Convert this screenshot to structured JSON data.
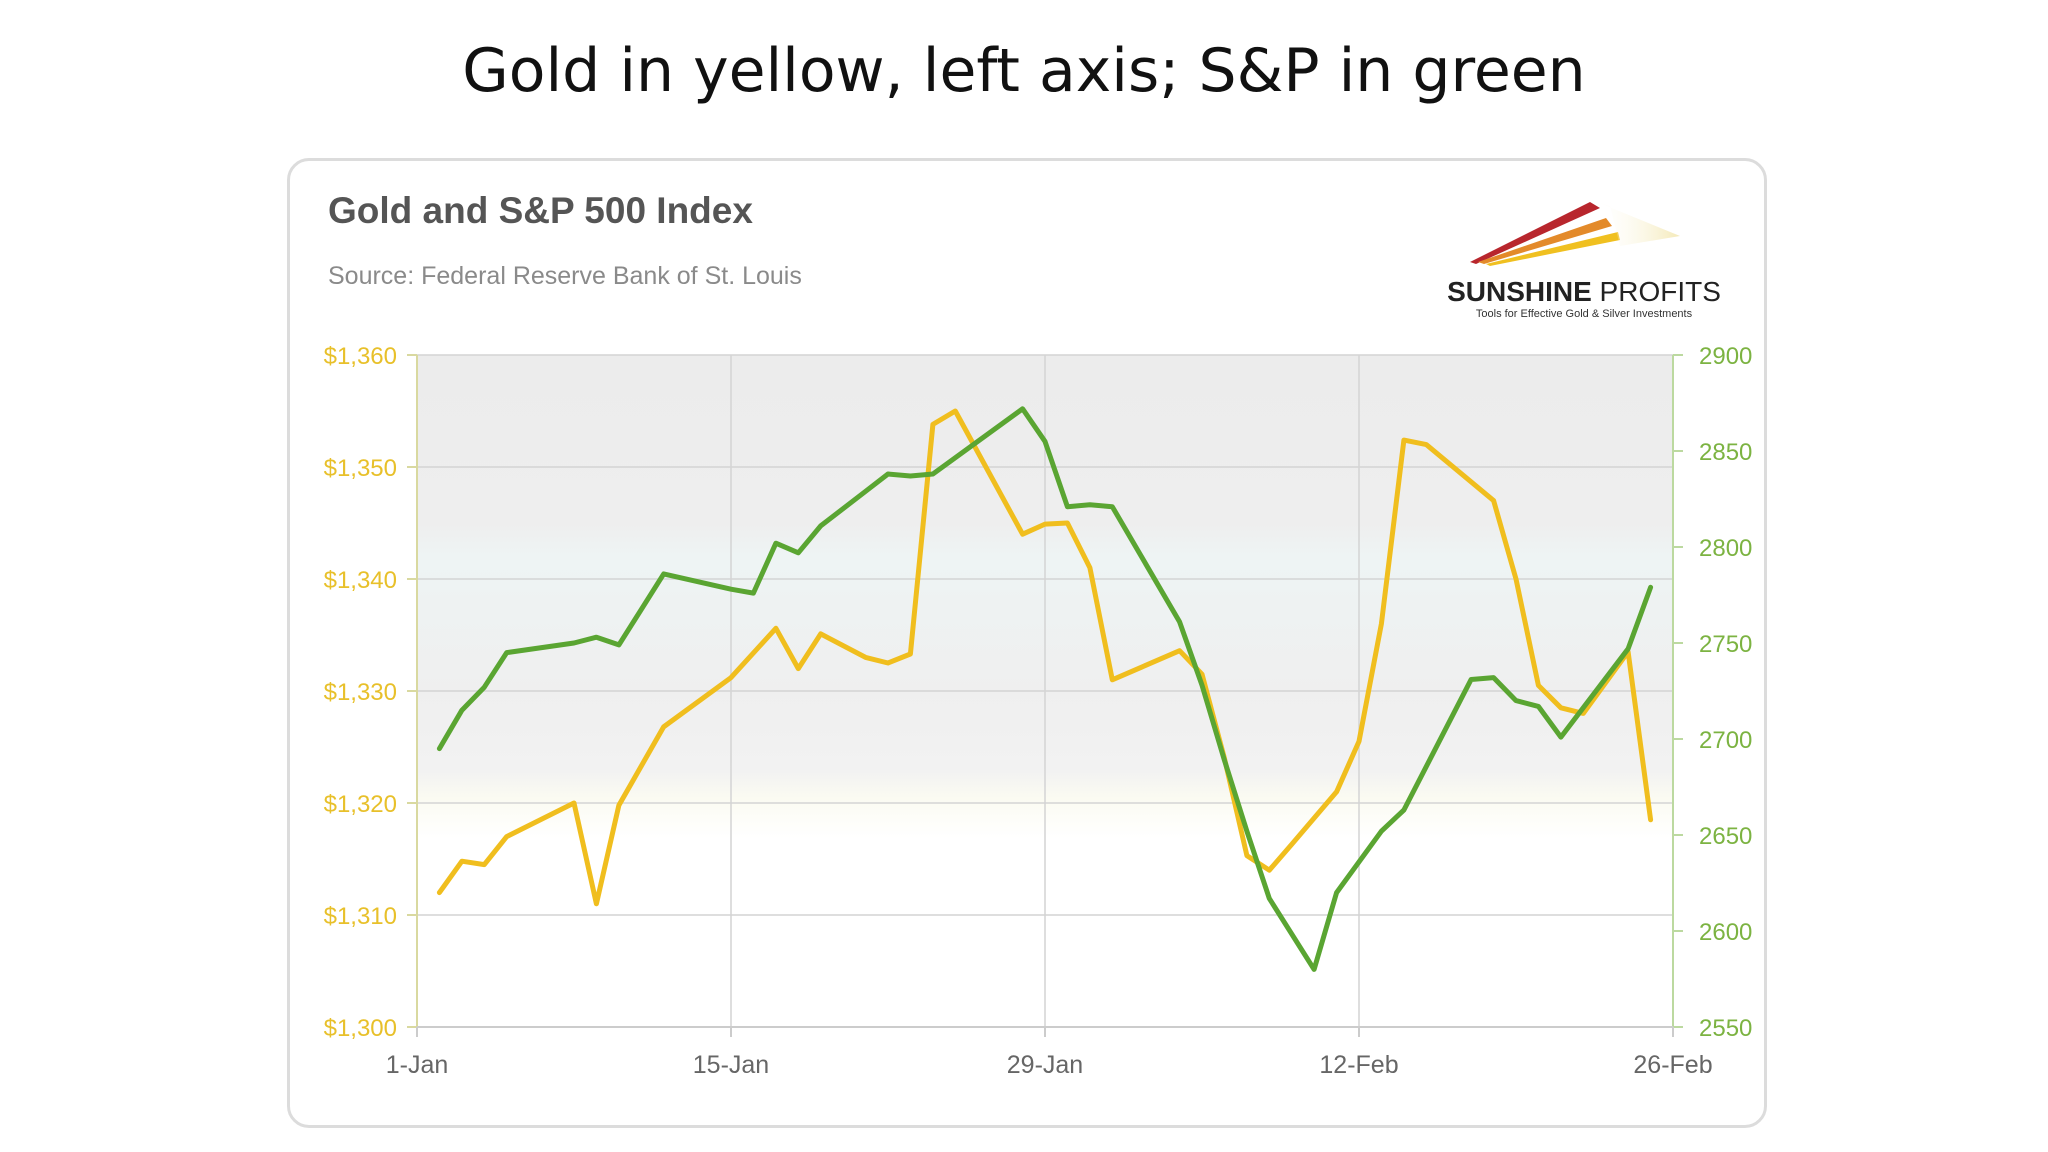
{
  "slide": {
    "title": "Gold in yellow, left axis; S&P in green"
  },
  "logo": {
    "name_bold": "SUNSHINE",
    "name_light": " PROFITS",
    "tagline": "Tools for Effective Gold & Silver Investments",
    "colors": [
      "#b8262d",
      "#e38a2a",
      "#f0c020"
    ]
  },
  "chart_data": {
    "type": "line",
    "title": "Gold and S&P 500 Index",
    "subtitle": "Source: Federal Reserve Bank of St. Louis",
    "x_tick_labels": [
      "1-Jan",
      "15-Jan",
      "29-Jan",
      "12-Feb",
      "26-Feb"
    ],
    "x_tick_days": [
      1,
      15,
      29,
      43,
      57
    ],
    "xlim": [
      1,
      57
    ],
    "y_left": {
      "lim": [
        1300,
        1360
      ],
      "ticks": [
        1300,
        1310,
        1320,
        1330,
        1340,
        1350,
        1360
      ],
      "tick_labels": [
        "$1,300",
        "$1,310",
        "$1,320",
        "$1,330",
        "$1,340",
        "$1,350",
        "$1,360"
      ],
      "color": "#e8c02a"
    },
    "y_right": {
      "lim": [
        2550,
        2900
      ],
      "ticks": [
        2550,
        2600,
        2650,
        2700,
        2750,
        2800,
        2850,
        2900
      ],
      "tick_labels": [
        "2550",
        "2600",
        "2650",
        "2700",
        "2750",
        "2800",
        "2850",
        "2900"
      ],
      "color": "#7cb342"
    },
    "grid": true,
    "series": [
      {
        "axis": "left",
        "color": "#f0be1e",
        "x": [
          2,
          3,
          4,
          5,
          8,
          9,
          10,
          12,
          15,
          17,
          18,
          19,
          21,
          22,
          23,
          24,
          25,
          28,
          29,
          30,
          31,
          32,
          35,
          36,
          37,
          38,
          39,
          40,
          42,
          43,
          44,
          45,
          46,
          49,
          50,
          51,
          52,
          53,
          55,
          56
        ],
        "y": [
          1312.0,
          1314.8,
          1314.5,
          1317.0,
          1320.0,
          1311.0,
          1319.8,
          1326.8,
          1331.2,
          1335.6,
          1332.0,
          1335.1,
          1333.0,
          1332.5,
          1333.3,
          1353.8,
          1355.0,
          1344.0,
          1344.9,
          1345.0,
          1341.0,
          1331.0,
          1333.6,
          1331.5,
          1324.0,
          1315.3,
          1314.0,
          1316.3,
          1321.0,
          1325.5,
          1336.0,
          1352.4,
          1352.0,
          1347.0,
          1340.0,
          1330.5,
          1328.5,
          1328.0,
          1333.5,
          1318.5
        ]
      },
      {
        "axis": "right",
        "color": "#5aa532",
        "x": [
          2,
          3,
          4,
          5,
          8,
          9,
          10,
          12,
          15,
          16,
          17,
          18,
          19,
          21,
          22,
          23,
          24,
          28,
          29,
          30,
          31,
          32,
          35,
          36,
          37,
          38,
          39,
          41,
          42,
          44,
          45,
          48,
          49,
          50,
          51,
          52,
          55,
          56
        ],
        "y": [
          2695,
          2715,
          2727,
          2745,
          2750,
          2753,
          2749,
          2786,
          2778,
          2776,
          2802,
          2797,
          2811,
          2829,
          2838,
          2837,
          2838,
          2872,
          2855,
          2821,
          2822,
          2821,
          2761,
          2728,
          2689,
          2652,
          2617,
          2580,
          2620,
          2652,
          2663,
          2731,
          2732,
          2720,
          2717,
          2701,
          2747,
          2779
        ]
      }
    ]
  }
}
